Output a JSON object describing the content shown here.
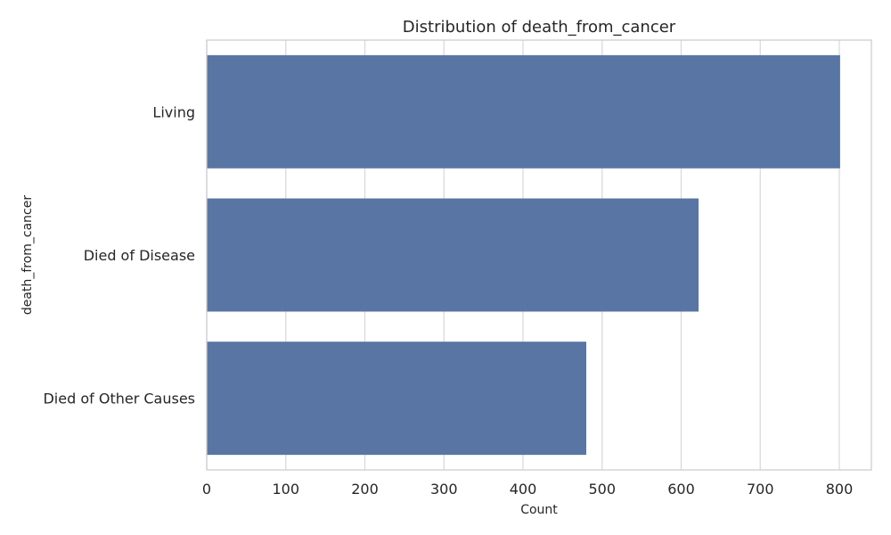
{
  "chart_data": {
    "type": "bar",
    "orientation": "horizontal",
    "title": "Distribution of death_from_cancer",
    "xlabel": "Count",
    "ylabel": "death_from_cancer",
    "categories": [
      "Living",
      "Died of Disease",
      "Died of Other Causes"
    ],
    "values": [
      801,
      622,
      480
    ],
    "xlim": [
      0,
      840
    ],
    "xticks": [
      0,
      100,
      200,
      300,
      400,
      500,
      600,
      700,
      800
    ],
    "grid": "vertical",
    "bar_color": "#5975a4"
  }
}
